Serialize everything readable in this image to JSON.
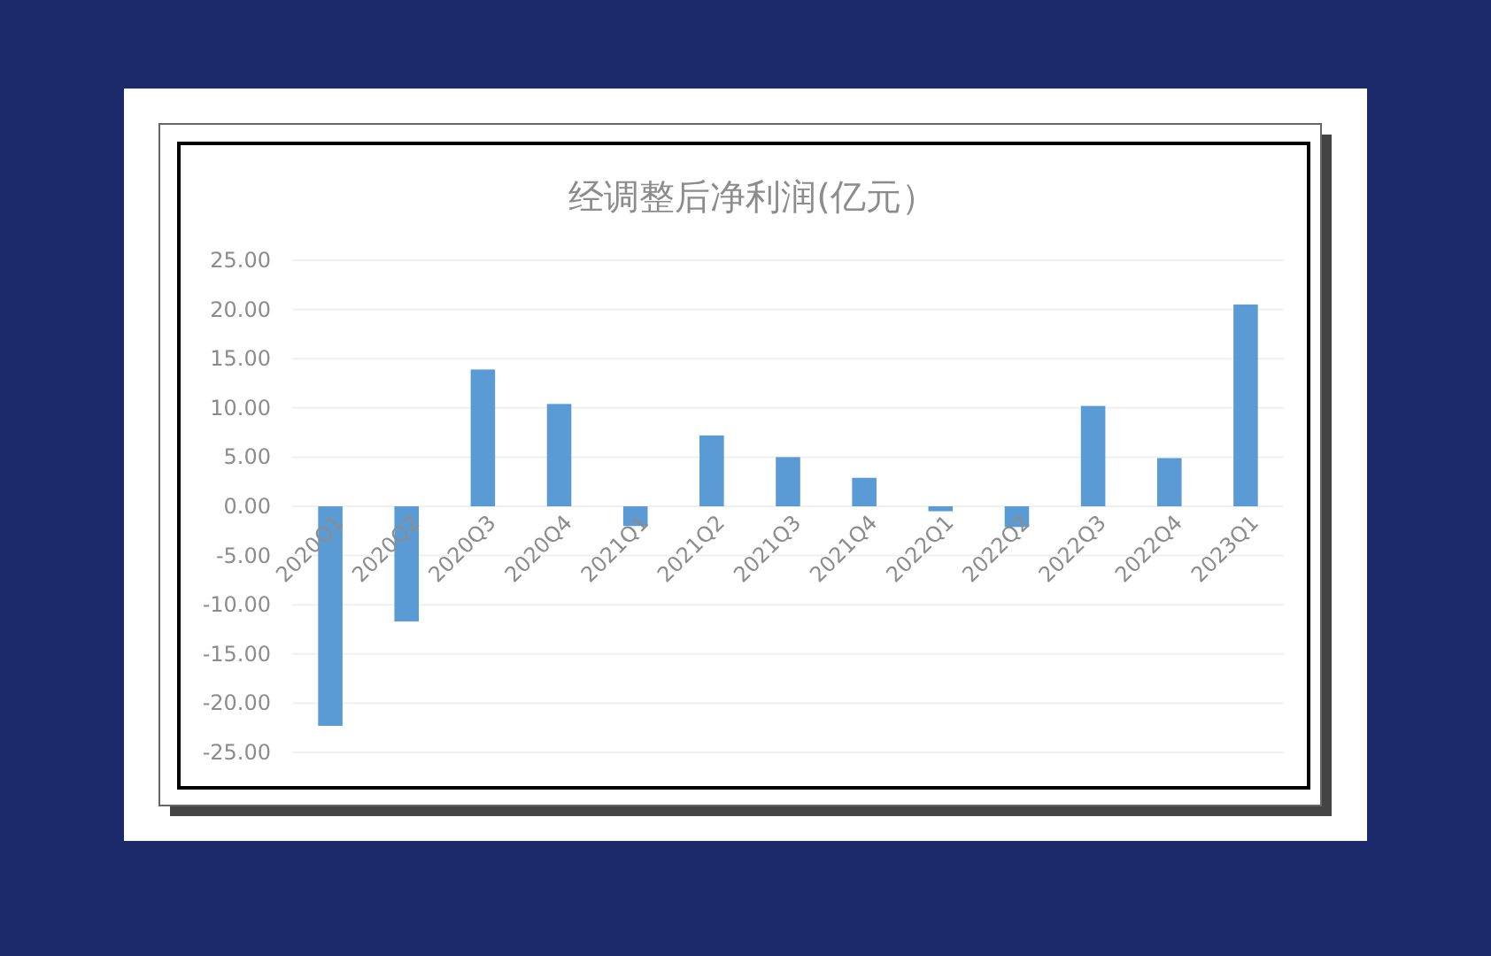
{
  "chart_data": {
    "type": "bar",
    "title": "经调整后净利润(亿元）",
    "categories": [
      "2020Q1",
      "2020Q2",
      "2020Q3",
      "2020Q4",
      "2021Q1",
      "2021Q2",
      "2021Q3",
      "2021Q4",
      "2022Q1",
      "2022Q2",
      "2022Q3",
      "2022Q4",
      "2023Q1"
    ],
    "values": [
      -22.3,
      -11.7,
      13.9,
      10.4,
      -2.0,
      7.2,
      5.0,
      2.9,
      -0.5,
      -2.1,
      10.2,
      4.9,
      20.5
    ],
    "color": "#5b9bd5",
    "ylim": [
      -25,
      25
    ],
    "yticks": [
      {
        "value": -25,
        "label": "-25.00"
      },
      {
        "value": -20,
        "label": "-20.00"
      },
      {
        "value": -15,
        "label": "-15.00"
      },
      {
        "value": -10,
        "label": "-10.00"
      },
      {
        "value": -5,
        "label": "-5.00"
      },
      {
        "value": 0,
        "label": "0.00"
      },
      {
        "value": 5,
        "label": "5.00"
      },
      {
        "value": 10,
        "label": "10.00"
      },
      {
        "value": 15,
        "label": "15.00"
      },
      {
        "value": 20,
        "label": "20.00"
      },
      {
        "value": 25,
        "label": "25.00"
      }
    ],
    "grid": "y"
  }
}
